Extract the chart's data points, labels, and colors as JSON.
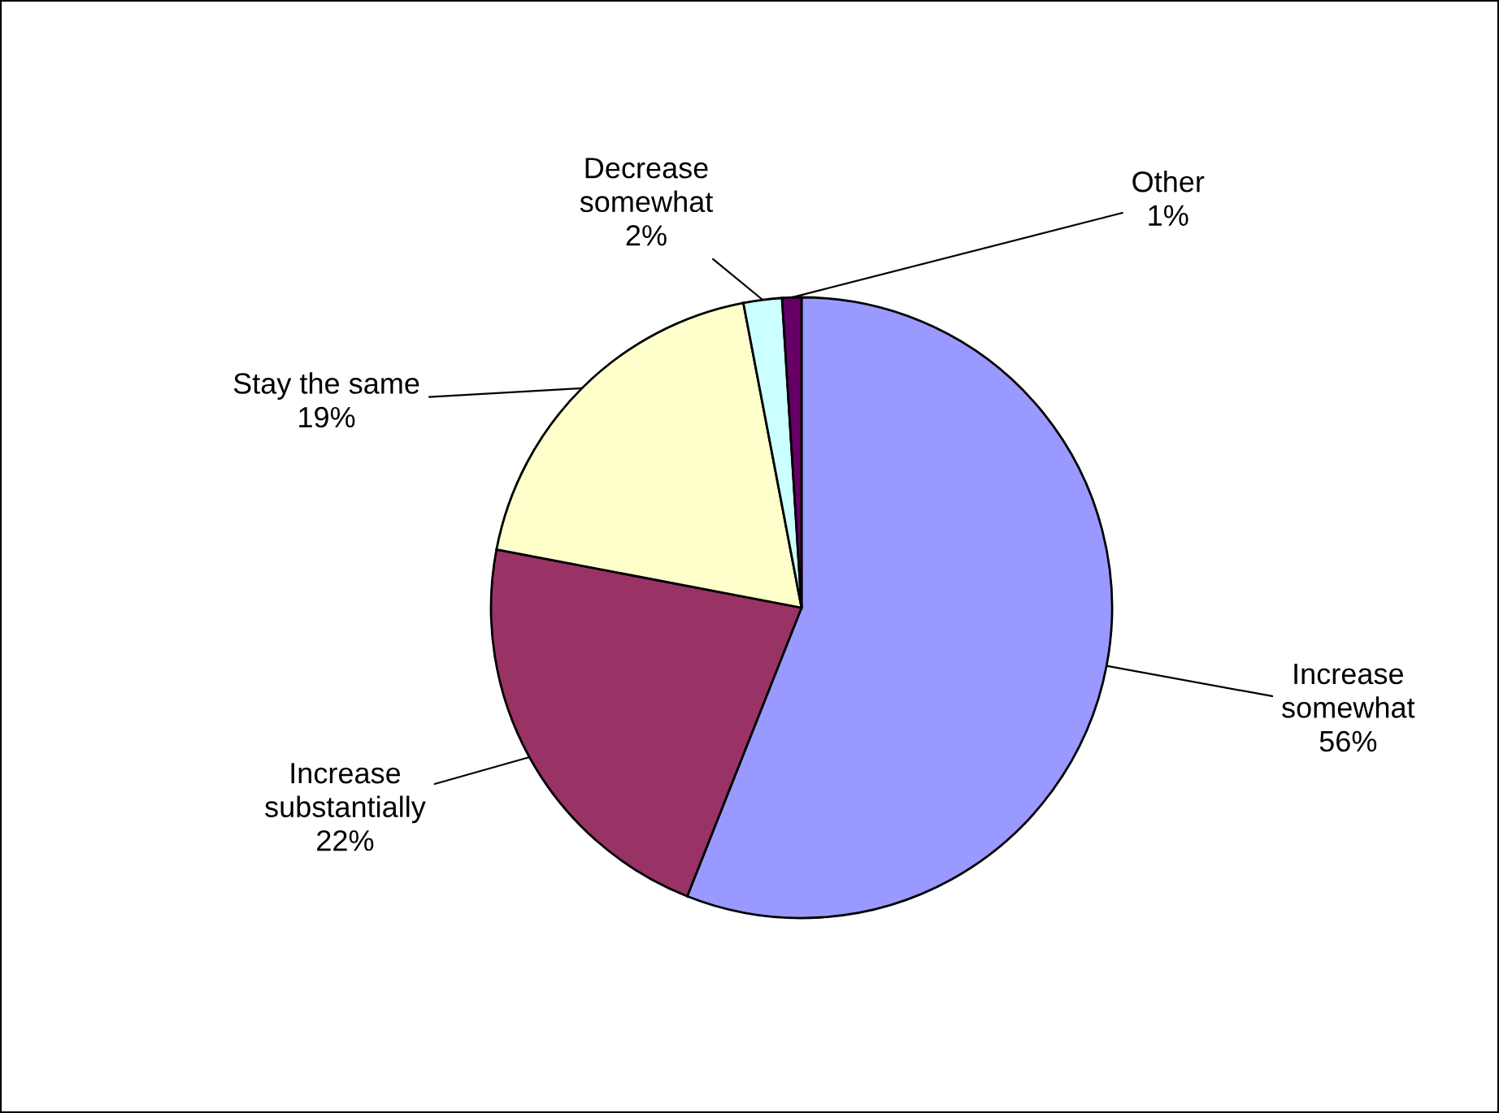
{
  "chart_data": {
    "type": "pie",
    "categories": [
      "Increase somewhat",
      "Increase substantially",
      "Stay the same",
      "Decrease somewhat",
      "Other"
    ],
    "values": [
      56,
      22,
      19,
      2,
      1
    ],
    "value_labels": [
      "56%",
      "22%",
      "19%",
      "2%",
      "1%"
    ],
    "colors": [
      "#9999ff",
      "#993366",
      "#ffffcc",
      "#ccffff",
      "#660066"
    ]
  }
}
